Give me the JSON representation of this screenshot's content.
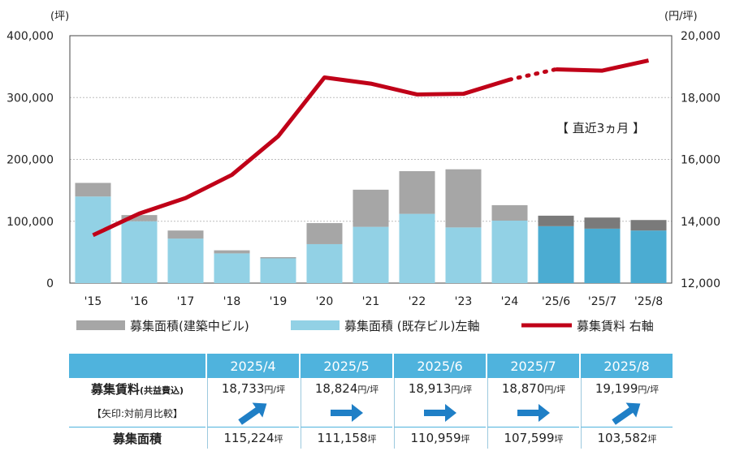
{
  "chart_data": {
    "type": "bar",
    "categories": [
      "'15",
      "'16",
      "'17",
      "'18",
      "'19",
      "'20",
      "'21",
      "'22",
      "'23",
      "'24",
      "'25/6",
      "'25/7",
      "'25/8"
    ],
    "series": [
      {
        "name": "募集面積(既存ビル)左軸",
        "axis": "left",
        "stack": "area",
        "values": [
          140000,
          100000,
          72000,
          48000,
          40000,
          63000,
          91000,
          112000,
          90000,
          101000,
          92000,
          88000,
          85000
        ]
      },
      {
        "name": "募集面積(建築中ビル)",
        "axis": "left",
        "stack": "area",
        "values": [
          22000,
          10000,
          13000,
          5000,
          2000,
          34000,
          60000,
          69000,
          94000,
          25000,
          17000,
          18000,
          17000
        ]
      },
      {
        "name": "募集賃料 右軸",
        "type": "line",
        "axis": "right",
        "values": [
          13550,
          14250,
          14750,
          15500,
          16750,
          18650,
          18450,
          18100,
          18120,
          18580,
          18913,
          18870,
          19199
        ]
      }
    ],
    "left_unit": "(坪)",
    "right_unit": "(円/坪)",
    "left_ticks": [
      "0",
      "100,000",
      "200,000",
      "300,000",
      "400,000"
    ],
    "right_ticks": [
      "12,000",
      "14,000",
      "16,000",
      "18,000",
      "20,000"
    ],
    "ylim_left": [
      0,
      400000
    ],
    "ylim_right": [
      12000,
      20000
    ],
    "recent_highlight_from": 10,
    "annotation": "【 直近3ヵ月 】",
    "legend": [
      "募集面積(建築中ビル)",
      "募集面積 (既存ビル)左軸",
      "募集賃料 右軸"
    ],
    "grid": true
  },
  "colors": {
    "existing": "#92d1e5",
    "existing_recent": "#4bacd2",
    "construction": "#a6a6a6",
    "construction_recent": "#7a7a7a",
    "rent_line": "#c00018",
    "header_bg": "#4fb3dd",
    "arrow": "#1f7fc6"
  },
  "table": {
    "rent_label": "募集賃料",
    "rent_label_note": "(共益費込)",
    "arrow_label": "【矢印:対前月比較】",
    "area_label": "募集面積",
    "rent_unit": "円/坪",
    "area_unit": "坪",
    "columns": [
      {
        "month": "2025/4",
        "rent": "18,733",
        "area": "115,224",
        "direction": "up"
      },
      {
        "month": "2025/5",
        "rent": "18,824",
        "area": "111,158",
        "direction": "flat"
      },
      {
        "month": "2025/6",
        "rent": "18,913",
        "area": "110,959",
        "direction": "flat"
      },
      {
        "month": "2025/7",
        "rent": "18,870",
        "area": "107,599",
        "direction": "flat"
      },
      {
        "month": "2025/8",
        "rent": "19,199",
        "area": "103,582",
        "direction": "up"
      }
    ]
  }
}
